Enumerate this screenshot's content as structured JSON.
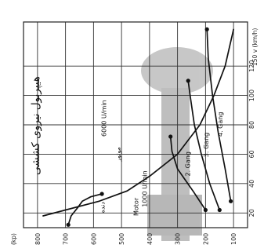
{
  "chart_data": {
    "type": "line",
    "title": "هیپربول نیروی کششی",
    "x": {
      "unit_label": "150 v (km/h)",
      "ticks": [
        20,
        40,
        60,
        80,
        100,
        120
      ],
      "range": [
        10,
        150
      ]
    },
    "y": {
      "unit_label": "(kp)",
      "ticks": [
        800,
        700,
        600,
        500,
        400,
        300,
        200,
        100
      ],
      "range": [
        50,
        850
      ]
    },
    "annotations": [
      {
        "label": "موتور",
        "anchor": "upper-left"
      },
      {
        "label": "6000 U/min",
        "anchor": "upper-left"
      },
      {
        "label": "دنده",
        "anchor": "lower-left"
      },
      {
        "label": "Motor",
        "anchor": "lower-left"
      },
      {
        "label": "1000 U/min",
        "anchor": "lower-left"
      }
    ],
    "series": [
      {
        "name": "هیپربول نیروی کششی",
        "points": [
          [
            18,
            780
          ],
          [
            22,
            700
          ],
          [
            28,
            580
          ],
          [
            35,
            480
          ],
          [
            45,
            400
          ],
          [
            60,
            300
          ],
          [
            80,
            220
          ],
          [
            100,
            170
          ],
          [
            120,
            130
          ],
          [
            145,
            100
          ]
        ]
      },
      {
        "name": "1. Gang",
        "points": [
          [
            12,
            690
          ],
          [
            18,
            680
          ],
          [
            24,
            655
          ],
          [
            28,
            640
          ],
          [
            31,
            610
          ],
          [
            33,
            570
          ]
        ]
      },
      {
        "name": "2. Gang",
        "points": [
          [
            22,
            200
          ],
          [
            35,
            245
          ],
          [
            50,
            300
          ],
          [
            62,
            320
          ],
          [
            72,
            325
          ]
        ]
      },
      {
        "name": "3. Gang",
        "points": [
          [
            22,
            150
          ],
          [
            40,
            185
          ],
          [
            60,
            215
          ],
          [
            80,
            240
          ],
          [
            100,
            255
          ],
          [
            110,
            262
          ]
        ]
      },
      {
        "name": "4. Gang",
        "points": [
          [
            28,
            110
          ],
          [
            50,
            130
          ],
          [
            75,
            155
          ],
          [
            100,
            175
          ],
          [
            125,
            190
          ],
          [
            145,
            195
          ]
        ]
      }
    ],
    "marker_points": [
      [
        12,
        690
      ],
      [
        33,
        570
      ],
      [
        22,
        200
      ],
      [
        72,
        325
      ],
      [
        22,
        150
      ],
      [
        110,
        262
      ],
      [
        28,
        110
      ],
      [
        145,
        195
      ]
    ],
    "grid": true,
    "background_figure": "silhouette-photo"
  }
}
